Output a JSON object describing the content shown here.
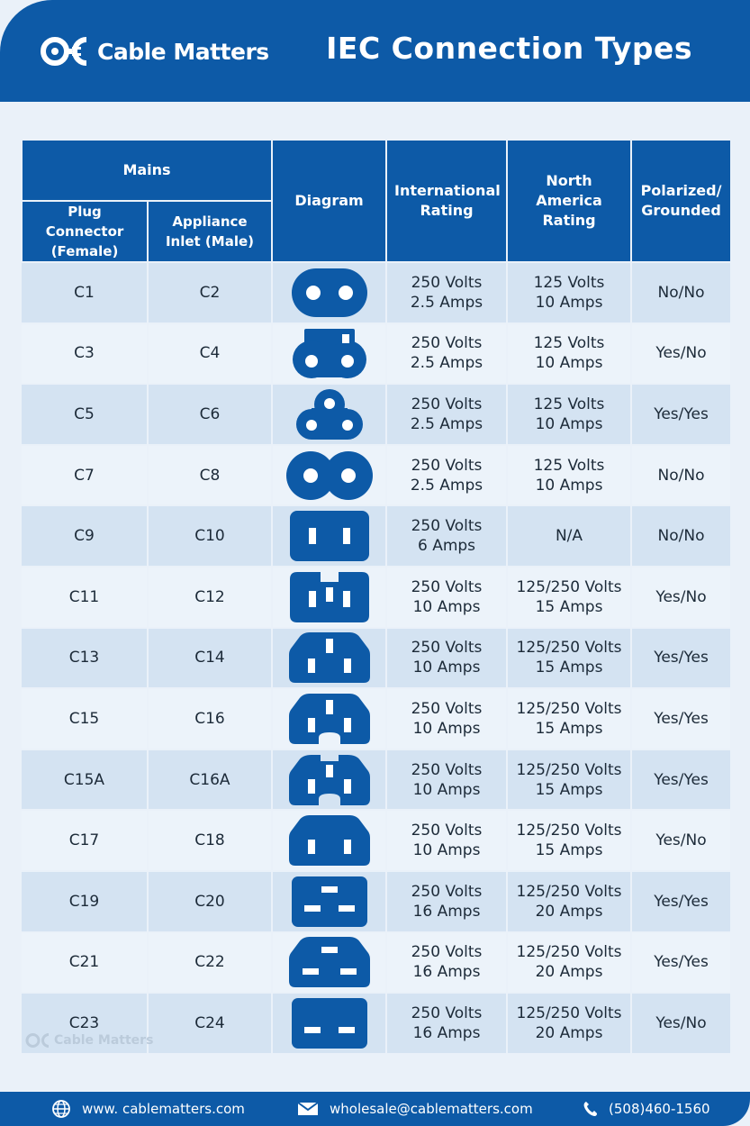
{
  "brand": {
    "name": "Cable Matters"
  },
  "title": "IEC Connection Types",
  "table": {
    "headers": {
      "mains": "Mains",
      "plug": "Plug Connector (Female)",
      "inlet": "Appliance Inlet (Male)",
      "diagram": "Diagram",
      "intl": "International Rating",
      "na": "North America Rating",
      "polar": "Polarized/ Grounded"
    },
    "rows": [
      {
        "plug": "C1",
        "inlet": "C2",
        "intl": [
          "250 Volts",
          "2.5 Amps"
        ],
        "na": [
          "125 Volts",
          "10 Amps"
        ],
        "polar": "No/No",
        "shape": "oval-2"
      },
      {
        "plug": "C3",
        "inlet": "C4",
        "intl": [
          "250 Volts",
          "2.5 Amps"
        ],
        "na": [
          "125 Volts",
          "10 Amps"
        ],
        "polar": "Yes/No",
        "shape": "figure8-tab"
      },
      {
        "plug": "C5",
        "inlet": "C6",
        "intl": [
          "250 Volts",
          "2.5 Amps"
        ],
        "na": [
          "125 Volts",
          "10 Amps"
        ],
        "polar": "Yes/Yes",
        "shape": "cloverleaf"
      },
      {
        "plug": "C7",
        "inlet": "C8",
        "intl": [
          "250 Volts",
          "2.5 Amps"
        ],
        "na": [
          "125 Volts",
          "10 Amps"
        ],
        "polar": "No/No",
        "shape": "figure8"
      },
      {
        "plug": "C9",
        "inlet": "C10",
        "intl": [
          "250 Volts",
          "6 Amps"
        ],
        "na": [
          "N/A"
        ],
        "polar": "No/No",
        "shape": "rect-2"
      },
      {
        "plug": "C11",
        "inlet": "C12",
        "intl": [
          "250 Volts",
          "10 Amps"
        ],
        "na": [
          "125/250 Volts",
          "15 Amps"
        ],
        "polar": "Yes/No",
        "shape": "rect-notch"
      },
      {
        "plug": "C13",
        "inlet": "C14",
        "intl": [
          "250 Volts",
          "10 Amps"
        ],
        "na": [
          "125/250 Volts",
          "15 Amps"
        ],
        "polar": "Yes/Yes",
        "shape": "c13"
      },
      {
        "plug": "C15",
        "inlet": "C16",
        "intl": [
          "250 Volts",
          "10 Amps"
        ],
        "na": [
          "125/250 Volts",
          "15 Amps"
        ],
        "polar": "Yes/Yes",
        "shape": "c15"
      },
      {
        "plug": "C15A",
        "inlet": "C16A",
        "intl": [
          "250 Volts",
          "10 Amps"
        ],
        "na": [
          "125/250 Volts",
          "15 Amps"
        ],
        "polar": "Yes/Yes",
        "shape": "c15a"
      },
      {
        "plug": "C17",
        "inlet": "C18",
        "intl": [
          "250 Volts",
          "10 Amps"
        ],
        "na": [
          "125/250 Volts",
          "15 Amps"
        ],
        "polar": "Yes/No",
        "shape": "c17"
      },
      {
        "plug": "C19",
        "inlet": "C20",
        "intl": [
          "250 Volts",
          "16 Amps"
        ],
        "na": [
          "125/250 Volts",
          "20 Amps"
        ],
        "polar": "Yes/Yes",
        "shape": "c19"
      },
      {
        "plug": "C21",
        "inlet": "C22",
        "intl": [
          "250 Volts",
          "16 Amps"
        ],
        "na": [
          "125/250 Volts",
          "20 Amps"
        ],
        "polar": "Yes/Yes",
        "shape": "c21"
      },
      {
        "plug": "C23",
        "inlet": "C24",
        "intl": [
          "250 Volts",
          "16 Amps"
        ],
        "na": [
          "125/250 Volts",
          "20 Amps"
        ],
        "polar": "Yes/No",
        "shape": "c23"
      }
    ]
  },
  "watermark": "Cable Matters",
  "footer": {
    "website": "www. cablematters.com",
    "email": "wholesale@cablematters.com",
    "phone": "(508)460-1560"
  },
  "colors": {
    "primary": "#0d5aa7",
    "row_dark": "#d4e3f2",
    "row_light": "#ecf3fa"
  }
}
